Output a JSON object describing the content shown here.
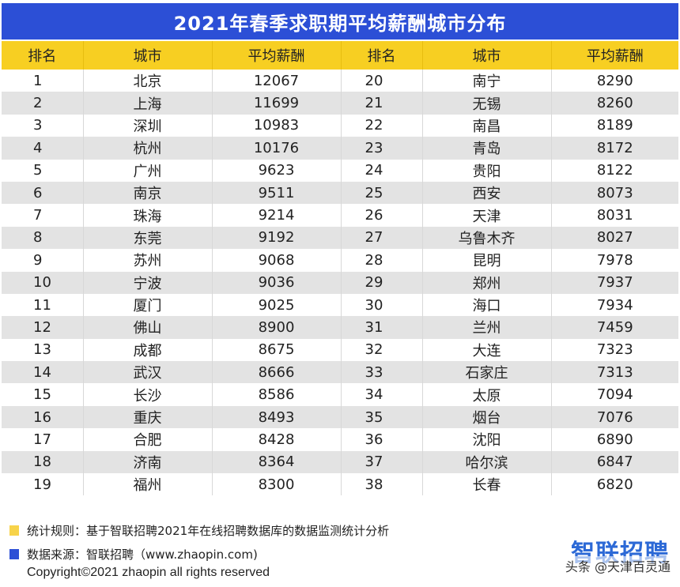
{
  "title": "2021年春季求职期平均薪酬城市分布",
  "headers": [
    "排名",
    "城市",
    "平均薪酬",
    "排名",
    "城市",
    "平均薪酬"
  ],
  "left_rows": [
    {
      "rank": "1",
      "city": "北京",
      "salary": "12067"
    },
    {
      "rank": "2",
      "city": "上海",
      "salary": "11699"
    },
    {
      "rank": "3",
      "city": "深圳",
      "salary": "10983"
    },
    {
      "rank": "4",
      "city": "杭州",
      "salary": "10176"
    },
    {
      "rank": "5",
      "city": "广州",
      "salary": "9623"
    },
    {
      "rank": "6",
      "city": "南京",
      "salary": "9511"
    },
    {
      "rank": "7",
      "city": "珠海",
      "salary": "9214"
    },
    {
      "rank": "8",
      "city": "东莞",
      "salary": "9192"
    },
    {
      "rank": "9",
      "city": "苏州",
      "salary": "9068"
    },
    {
      "rank": "10",
      "city": "宁波",
      "salary": "9036"
    },
    {
      "rank": "11",
      "city": "厦门",
      "salary": "9025"
    },
    {
      "rank": "12",
      "city": "佛山",
      "salary": "8900"
    },
    {
      "rank": "13",
      "city": "成都",
      "salary": "8675"
    },
    {
      "rank": "14",
      "city": "武汉",
      "salary": "8666"
    },
    {
      "rank": "15",
      "city": "长沙",
      "salary": "8586"
    },
    {
      "rank": "16",
      "city": "重庆",
      "salary": "8493"
    },
    {
      "rank": "17",
      "city": "合肥",
      "salary": "8428"
    },
    {
      "rank": "18",
      "city": "济南",
      "salary": "8364"
    },
    {
      "rank": "19",
      "city": "福州",
      "salary": "8300"
    }
  ],
  "right_rows": [
    {
      "rank": "20",
      "city": "南宁",
      "salary": "8290"
    },
    {
      "rank": "21",
      "city": "无锡",
      "salary": "8260"
    },
    {
      "rank": "22",
      "city": "南昌",
      "salary": "8189"
    },
    {
      "rank": "23",
      "city": "青岛",
      "salary": "8172"
    },
    {
      "rank": "24",
      "city": "贵阳",
      "salary": "8122"
    },
    {
      "rank": "25",
      "city": "西安",
      "salary": "8073"
    },
    {
      "rank": "26",
      "city": "天津",
      "salary": "8031"
    },
    {
      "rank": "27",
      "city": "乌鲁木齐",
      "salary": "8027"
    },
    {
      "rank": "28",
      "city": "昆明",
      "salary": "7978"
    },
    {
      "rank": "29",
      "city": "郑州",
      "salary": "7937"
    },
    {
      "rank": "30",
      "city": "海口",
      "salary": "7934"
    },
    {
      "rank": "31",
      "city": "兰州",
      "salary": "7459"
    },
    {
      "rank": "32",
      "city": "大连",
      "salary": "7323"
    },
    {
      "rank": "33",
      "city": "石家庄",
      "salary": "7313"
    },
    {
      "rank": "34",
      "city": "太原",
      "salary": "7094"
    },
    {
      "rank": "35",
      "city": "烟台",
      "salary": "7076"
    },
    {
      "rank": "36",
      "city": "沈阳",
      "salary": "6890"
    },
    {
      "rank": "37",
      "city": "哈尔滨",
      "salary": "6847"
    },
    {
      "rank": "38",
      "city": "长春",
      "salary": "6820"
    }
  ],
  "notes": {
    "rule": "统计规则：基于智联招聘2021年在线招聘数据库的数据监测统计分析",
    "source": "数据来源：智联招聘（www.zhaopin.com)"
  },
  "logo_text": "智联招聘",
  "watermark": "头条 @天津百灵通",
  "copyright": "Copyright©2021 zhaopin all rights reserved",
  "colors": {
    "title_bg": "#2c4fd6",
    "header_bg": "#f7cf22",
    "stripe": "#e3e3e3",
    "logo": "#2c69d6"
  }
}
